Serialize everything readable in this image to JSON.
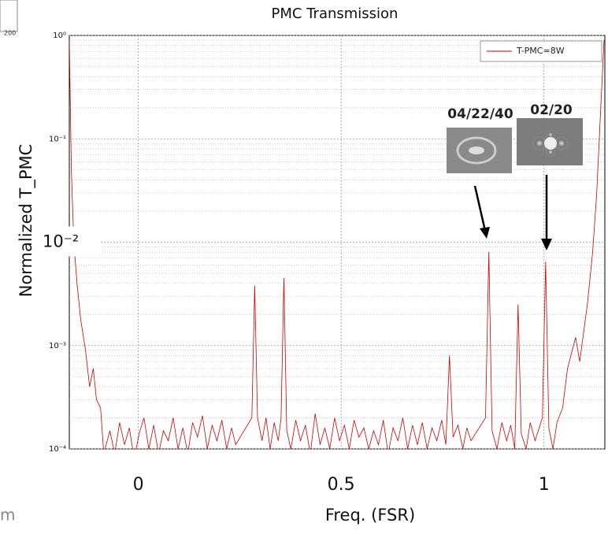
{
  "chart_data": {
    "type": "line",
    "title": "PMC Transmission",
    "xlabel": "Freq. (FSR)",
    "ylabel": "Normalized T_PMC",
    "yscale": "log",
    "grid": true,
    "legend_position": "upper right",
    "xlim": [
      -0.17,
      1.15
    ],
    "ylim": [
      0.0001,
      1
    ],
    "xticks": [
      0,
      0.5,
      1
    ],
    "yticks": [
      {
        "value": 1,
        "label": "10⁰"
      },
      {
        "value": 0.1,
        "label": "10⁻¹"
      },
      {
        "value": 0.01,
        "label": "10⁻²"
      },
      {
        "value": 0.001,
        "label": "10⁻³"
      },
      {
        "value": 0.0001,
        "label": "10⁻⁴"
      }
    ],
    "annotations": [
      "04/22/40",
      "02/20"
    ],
    "cropped_labels": [
      "200",
      "m"
    ],
    "x": [
      -0.17,
      -0.165,
      -0.159,
      -0.151,
      -0.142,
      -0.13,
      -0.12,
      -0.111,
      -0.103,
      -0.093,
      -0.085,
      -0.07,
      -0.058,
      -0.046,
      -0.034,
      -0.022,
      -0.01,
      0.002,
      0.014,
      0.026,
      0.038,
      0.05,
      0.062,
      0.074,
      0.086,
      0.098,
      0.11,
      0.122,
      0.134,
      0.146,
      0.158,
      0.17,
      0.182,
      0.194,
      0.206,
      0.218,
      0.23,
      0.24,
      0.28,
      0.287,
      0.294,
      0.305,
      0.315,
      0.325,
      0.335,
      0.345,
      0.352,
      0.359,
      0.366,
      0.376,
      0.388,
      0.4,
      0.412,
      0.424,
      0.436,
      0.448,
      0.46,
      0.472,
      0.484,
      0.496,
      0.508,
      0.52,
      0.532,
      0.544,
      0.556,
      0.568,
      0.58,
      0.592,
      0.604,
      0.616,
      0.628,
      0.64,
      0.652,
      0.664,
      0.676,
      0.688,
      0.7,
      0.712,
      0.724,
      0.736,
      0.748,
      0.758,
      0.767,
      0.776,
      0.788,
      0.8,
      0.81,
      0.82,
      0.856,
      0.864,
      0.872,
      0.884,
      0.896,
      0.908,
      0.918,
      0.928,
      0.936,
      0.944,
      0.956,
      0.966,
      0.978,
      0.996,
      1.004,
      1.012,
      1.022,
      1.032,
      1.046,
      1.058,
      1.078,
      1.088,
      1.107,
      1.12,
      1.13,
      1.14,
      1.148
    ],
    "series": [
      {
        "name": "T-PMC=8W",
        "color": "#cc0000",
        "values": [
          0.9,
          0.05,
          0.01,
          0.004,
          0.0018,
          0.0009,
          0.0004,
          0.0006,
          0.0003,
          0.00025,
          9e-05,
          0.00015,
          9e-05,
          0.00018,
          0.00011,
          0.00016,
          8e-05,
          0.00014,
          0.0002,
          0.0001,
          0.00017,
          9e-05,
          0.00015,
          0.00012,
          0.0002,
          0.0001,
          0.00016,
          9e-05,
          0.00018,
          0.00013,
          0.00021,
          0.0001,
          0.00017,
          0.00012,
          0.00019,
          0.0001,
          0.00016,
          0.00011,
          0.0002,
          0.0038,
          0.0002,
          0.00012,
          0.0002,
          0.0001,
          0.00018,
          0.00012,
          0.0002,
          0.0045,
          0.00015,
          0.0001,
          0.00019,
          0.00012,
          0.00017,
          9e-05,
          0.00022,
          0.00011,
          0.00016,
          0.0001,
          0.0002,
          0.00012,
          0.00017,
          0.0001,
          0.00019,
          0.00013,
          0.00016,
          0.0001,
          0.00015,
          0.00011,
          0.00019,
          9e-05,
          0.00016,
          0.00012,
          0.0002,
          0.0001,
          0.00017,
          0.00011,
          0.00018,
          0.0001,
          0.00016,
          0.00012,
          0.00019,
          0.00011,
          0.0008,
          0.00013,
          0.00017,
          0.0001,
          0.00016,
          0.00012,
          0.0002,
          0.0081,
          0.00015,
          0.0001,
          0.00018,
          0.00012,
          0.00017,
          0.0001,
          0.0025,
          0.00014,
          0.0001,
          0.00018,
          0.00012,
          0.0002,
          0.0065,
          0.00016,
          0.0001,
          0.00018,
          0.00025,
          0.0006,
          0.0012,
          0.0007,
          0.0025,
          0.008,
          0.03,
          0.2,
          0.9
        ]
      }
    ]
  }
}
